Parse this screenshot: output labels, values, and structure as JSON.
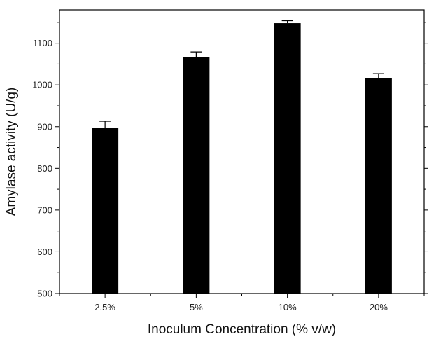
{
  "chart_data": {
    "type": "bar",
    "xlabel": "Inoculum Concentration (% v/w)",
    "ylabel": "Amylase activity (U/g)",
    "categories": [
      "2.5%",
      "5%",
      "10%",
      "20%"
    ],
    "values": [
      897,
      1066,
      1148,
      1017
    ],
    "errors": [
      16,
      13,
      6,
      10
    ],
    "ylim": [
      500,
      1180
    ],
    "yticks": [
      500,
      600,
      700,
      800,
      900,
      1000,
      1100
    ],
    "yminor_step": 50,
    "grid": false,
    "legend": "none",
    "bar_color": "#000000"
  }
}
